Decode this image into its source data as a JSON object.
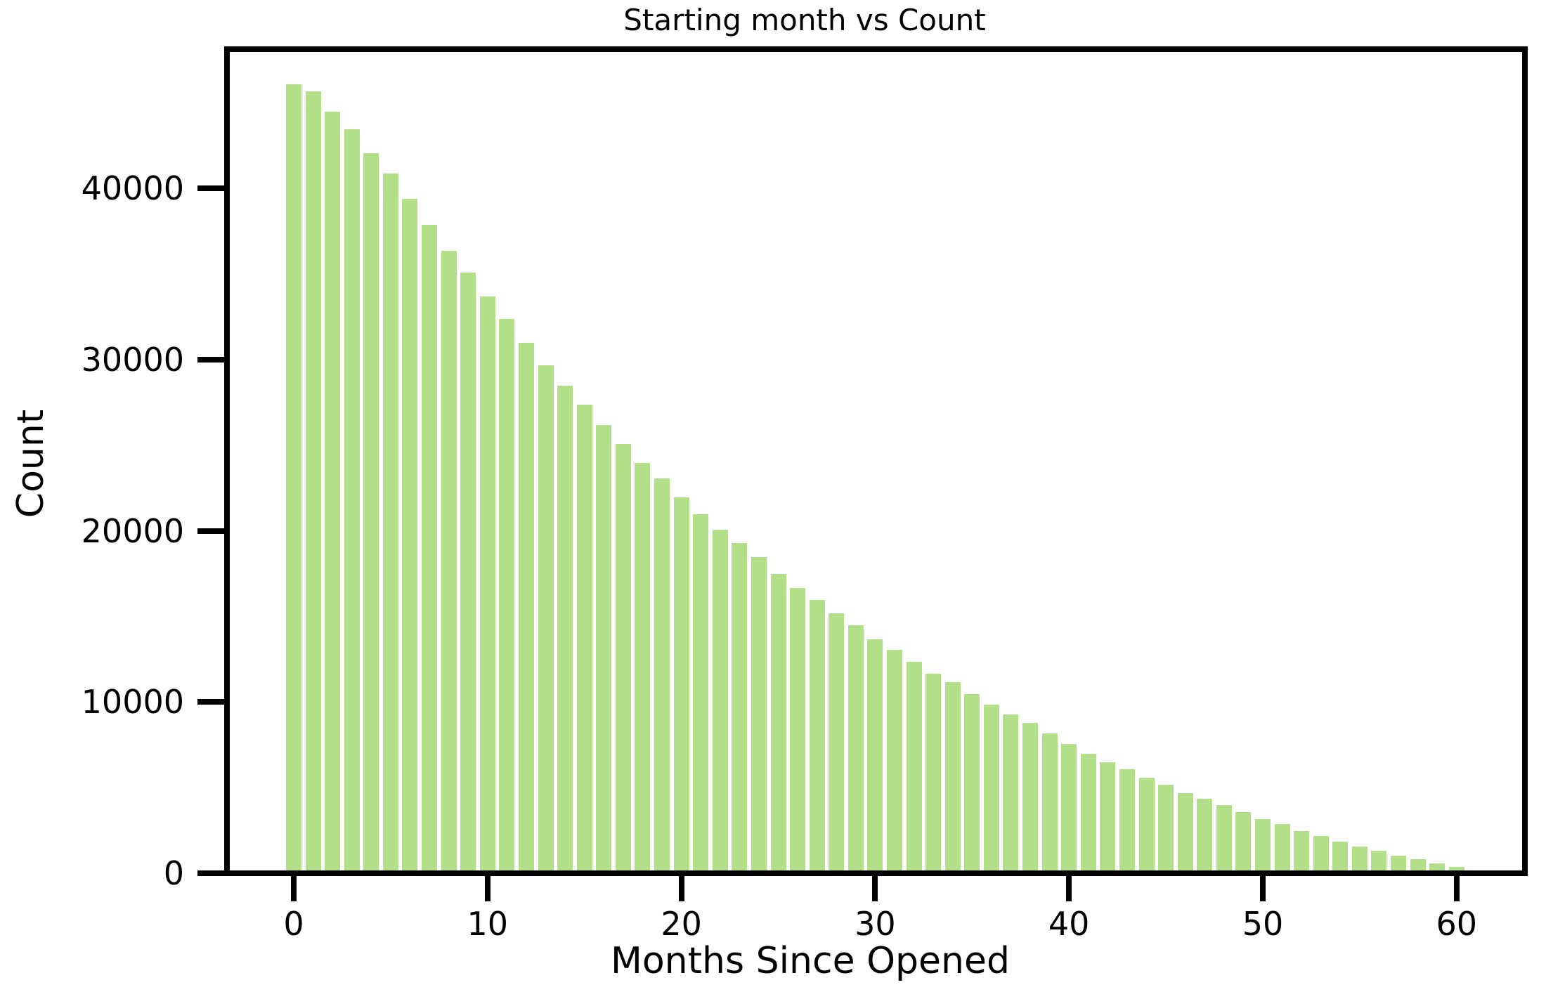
{
  "figure": {
    "title": "Starting month vs Count",
    "xlabel": "Months Since Opened",
    "ylabel": "Count"
  },
  "chart_data": {
    "type": "bar",
    "title": "Starting month vs Count",
    "xlabel": "Months Since Opened",
    "ylabel": "Count",
    "x": [
      0,
      1,
      2,
      3,
      4,
      5,
      6,
      7,
      8,
      9,
      10,
      11,
      12,
      13,
      14,
      15,
      16,
      17,
      18,
      19,
      20,
      21,
      22,
      23,
      24,
      25,
      26,
      27,
      28,
      29,
      30,
      31,
      32,
      33,
      34,
      35,
      36,
      37,
      38,
      39,
      40,
      41,
      42,
      43,
      44,
      45,
      46,
      47,
      48,
      49,
      50,
      51,
      52,
      53,
      54,
      55,
      56,
      57,
      58,
      59,
      60
    ],
    "values": [
      45900,
      45500,
      44300,
      43300,
      41900,
      40700,
      39200,
      37700,
      36200,
      34900,
      33500,
      32200,
      30800,
      29500,
      28300,
      27200,
      26000,
      24900,
      23800,
      22900,
      21800,
      20800,
      19900,
      19100,
      18300,
      17300,
      16500,
      15800,
      15000,
      14300,
      13500,
      12900,
      12200,
      11500,
      11000,
      10300,
      9700,
      9100,
      8600,
      8000,
      7400,
      6800,
      6300,
      5900,
      5400,
      5000,
      4500,
      4200,
      3800,
      3400,
      3000,
      2700,
      2300,
      2000,
      1700,
      1400,
      1150,
      860,
      650,
      410,
      200
    ],
    "x_ticks": [
      0,
      10,
      20,
      30,
      40,
      50,
      60
    ],
    "x_tick_labels": [
      "0",
      "10",
      "20",
      "30",
      "40",
      "50",
      "60"
    ],
    "y_ticks": [
      0,
      10000,
      20000,
      30000,
      40000
    ],
    "y_tick_labels": [
      "0",
      "10000",
      "20000",
      "30000",
      "40000"
    ],
    "xlim": [
      -3.4,
      63.5
    ],
    "ylim": [
      0,
      48200
    ],
    "grid": false,
    "legend_position": "none",
    "bar_color": "#b2df8a",
    "axis_color": "#000000",
    "background_color": "#ffffff"
  }
}
